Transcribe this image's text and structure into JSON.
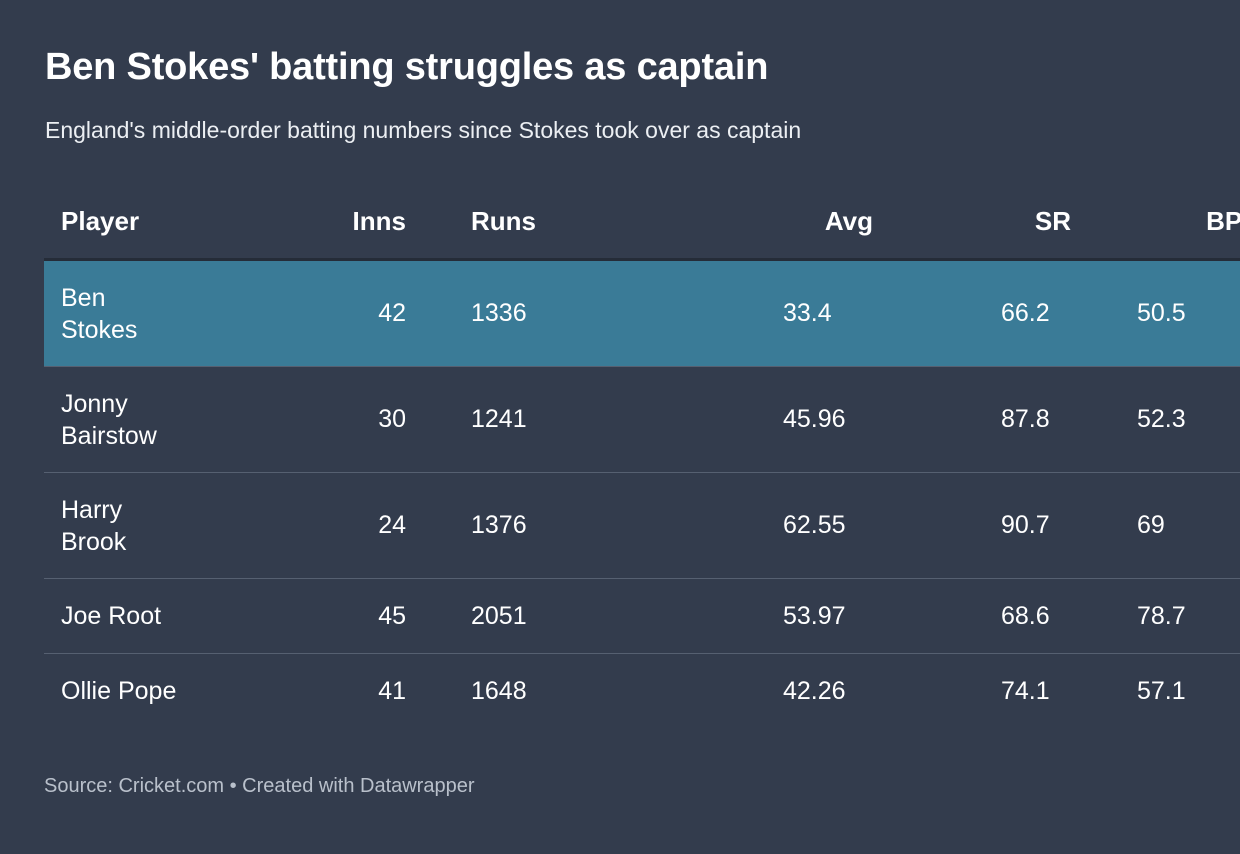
{
  "title": "Ben Stokes' batting struggles as captain",
  "subtitle": "England's middle-order batting numbers since Stokes took over as captain",
  "chart_data": {
    "type": "table",
    "columns": [
      "Player",
      "Inns",
      "Runs",
      "Avg",
      "SR",
      "BPD"
    ],
    "rows": [
      {
        "player": "Ben Stokes",
        "inns": "42",
        "runs": "1336",
        "avg": "33.4",
        "sr": "66.2",
        "bpd": "50.5",
        "highlighted": true
      },
      {
        "player": "Jonny Bairstow",
        "inns": "30",
        "runs": "1241",
        "avg": "45.96",
        "sr": "87.8",
        "bpd": "52.3",
        "highlighted": false
      },
      {
        "player": "Harry Brook",
        "inns": "24",
        "runs": "1376",
        "avg": "62.55",
        "sr": "90.7",
        "bpd": "69",
        "highlighted": false
      },
      {
        "player": "Joe Root",
        "inns": "45",
        "runs": "2051",
        "avg": "53.97",
        "sr": "68.6",
        "bpd": "78.7",
        "highlighted": false
      },
      {
        "player": "Ollie Pope",
        "inns": "41",
        "runs": "1648",
        "avg": "42.26",
        "sr": "74.1",
        "bpd": "57.1",
        "highlighted": false
      }
    ]
  },
  "colors": {
    "background": "#333c4d",
    "highlight_row": "#3a7b97",
    "row_divider": "#566071",
    "header_divider": "#252c38"
  },
  "footer": "Source: Cricket.com • Created with Datawrapper"
}
